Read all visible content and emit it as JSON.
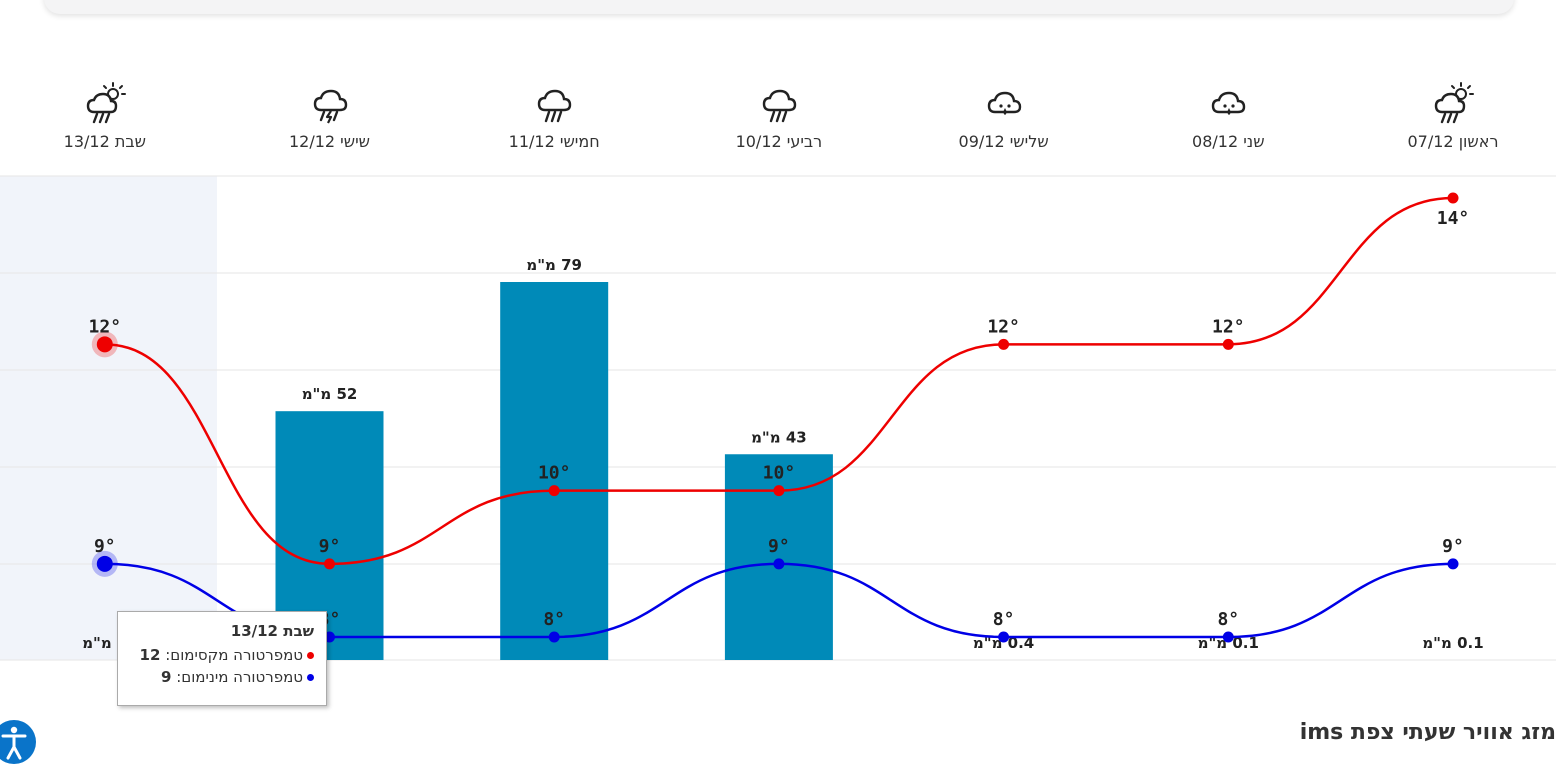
{
  "days": [
    {
      "label": "ראשון 07/12",
      "icon": "partly-sunny-rain-icon"
    },
    {
      "label": "שני 08/12",
      "icon": "cloud-drizzle-icon"
    },
    {
      "label": "שלישי 09/12",
      "icon": "cloud-drizzle-icon"
    },
    {
      "label": "רביעי 10/12",
      "icon": "cloud-rain-icon"
    },
    {
      "label": "חמישי 11/12",
      "icon": "cloud-rain-icon"
    },
    {
      "label": "שישי 12/12",
      "icon": "thunderstorm-icon"
    },
    {
      "label": "שבת 13/12",
      "icon": "partly-sunny-rain-icon"
    }
  ],
  "chart_data": {
    "type": "line",
    "categories": [
      "ראשון 07/12",
      "שני 08/12",
      "שלישי 09/12",
      "רביעי 10/12",
      "חמישי 11/12",
      "שישי 12/12",
      "שבת 13/12"
    ],
    "series": [
      {
        "name": "טמפרטורה מקסימום",
        "type": "line",
        "color": "#ee0000",
        "values": [
          14,
          12,
          12,
          10,
          10,
          9,
          12
        ],
        "labels": [
          "14°",
          "12°",
          "12°",
          "10°",
          "10°",
          "9°",
          "12°"
        ]
      },
      {
        "name": "טמפרטורה מינימום",
        "type": "line",
        "color": "#0000e6",
        "values": [
          9,
          8,
          8,
          9,
          8,
          8,
          9
        ],
        "labels": [
          "9°",
          "8°",
          "8°",
          "9°",
          "8°",
          "8°",
          "9°"
        ]
      },
      {
        "name": "precipitation",
        "type": "bar",
        "color": "#008ab8",
        "values": [
          0.1,
          0.1,
          0.4,
          43,
          79,
          52,
          0
        ],
        "labels": [
          "0.1 מ\"מ",
          "0.1 מ\"מ",
          "0.4 מ\"מ",
          "43 מ\"מ",
          "79 מ\"מ",
          "52 מ\"מ",
          "0 מ\"מ"
        ]
      }
    ],
    "ylim_temp": [
      7,
      15
    ],
    "ylim_precip": [
      0,
      95
    ],
    "highlighted_category": "שבת 13/12",
    "grid": true
  },
  "tooltip": {
    "title": "שבת 13/12",
    "max_label": "טמפרטורה מקסימום",
    "max_value": "12",
    "min_label": "טמפרטורה מינימום",
    "min_value": "9",
    "max_color": "#ee0000",
    "min_color": "#0000e6"
  },
  "footer": {
    "title": "מזג אוויר שעתי צפת ims"
  }
}
